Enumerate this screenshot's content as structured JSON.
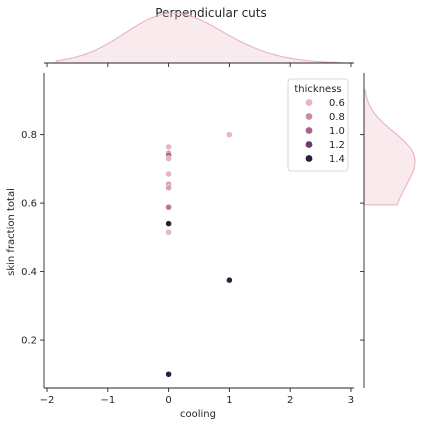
{
  "chart_data": {
    "type": "scatter",
    "title": "Perpendicular cuts",
    "xlabel": "cooling",
    "ylabel": "skin fraction total",
    "xlim": [
      -2.05,
      3.05
    ],
    "ylim": [
      0.06,
      0.98
    ],
    "xticks": [
      -2,
      -1,
      0,
      1,
      2,
      3
    ],
    "xtick_labels": [
      "−2",
      "−1",
      "0",
      "1",
      "2",
      "3"
    ],
    "yticks": [
      0.2,
      0.4,
      0.6,
      0.8
    ],
    "ytick_labels": [
      "0.2",
      "0.4",
      "0.6",
      "0.8"
    ],
    "grid": false,
    "legend": {
      "title": "thickness",
      "placement": "top-right",
      "entries": [
        {
          "label": "0.6",
          "value": 0.6,
          "color": "#e8b4c0"
        },
        {
          "label": "0.8",
          "value": 0.8,
          "color": "#c98da3"
        },
        {
          "label": "1.0",
          "value": 1.0,
          "color": "#a6648a"
        },
        {
          "label": "1.2",
          "value": 1.2,
          "color": "#6b3a6e"
        },
        {
          "label": "1.4",
          "value": 1.4,
          "color": "#2d1e3e"
        }
      ]
    },
    "points": [
      {
        "x": 0,
        "y": 0.764,
        "thickness": 0.6
      },
      {
        "x": 0,
        "y": 0.745,
        "thickness": 0.8
      },
      {
        "x": 0,
        "y": 0.74,
        "thickness": 1.0
      },
      {
        "x": 0,
        "y": 0.73,
        "thickness": 0.6
      },
      {
        "x": 0,
        "y": 0.685,
        "thickness": 0.6
      },
      {
        "x": 0,
        "y": 0.655,
        "thickness": 0.7
      },
      {
        "x": 0,
        "y": 0.645,
        "thickness": 0.7
      },
      {
        "x": 0,
        "y": 0.588,
        "thickness": 0.9
      },
      {
        "x": 0,
        "y": 0.54,
        "thickness": 1.4
      },
      {
        "x": 0,
        "y": 0.515,
        "thickness": 0.6
      },
      {
        "x": 0,
        "y": 0.1,
        "thickness": 1.4
      },
      {
        "x": 1,
        "y": 0.8,
        "thickness": 0.6
      },
      {
        "x": 1,
        "y": 0.375,
        "thickness": 1.4
      }
    ],
    "marginal_color": "#e8b4c0"
  }
}
